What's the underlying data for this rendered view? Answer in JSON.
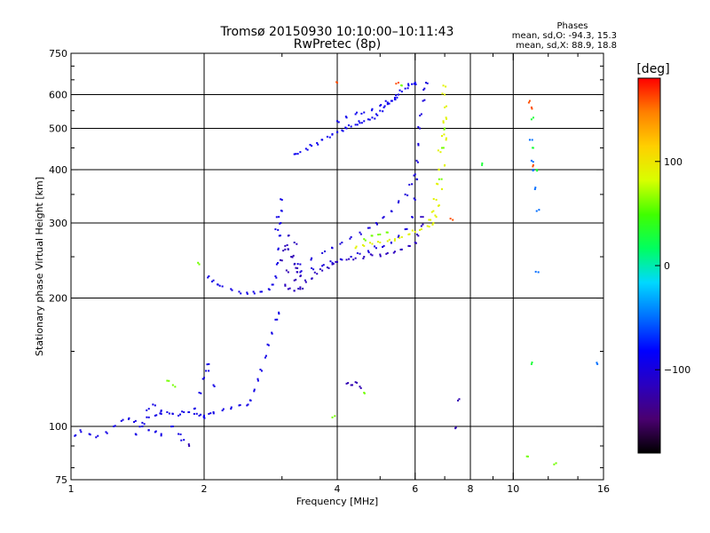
{
  "chart_data": {
    "type": "scatter",
    "title": "Tromsø 20150930 10:10:00–10:11:43",
    "subtitle": "RwPretec (8p)",
    "xlabel": "Frequency [MHz]",
    "ylabel": "Stationary phase Virtual Height [km]",
    "x_scale": "log",
    "y_scale": "log",
    "xlim": [
      1,
      16
    ],
    "ylim": [
      75,
      750
    ],
    "x_ticks": [
      1,
      2,
      4,
      6,
      8,
      10,
      16
    ],
    "y_ticks": [
      75,
      100,
      200,
      300,
      400,
      500,
      600,
      750
    ],
    "x_grid": [
      2,
      4,
      6,
      8,
      10
    ],
    "y_grid": [
      100,
      200,
      300,
      400,
      500,
      600
    ],
    "grid": true,
    "stats": {
      "title": "Phases",
      "line_o": "mean, sd,O: -94.3, 15.3",
      "line_x": "mean, sd,X:  88.9, 18.8"
    },
    "colorbar": {
      "label": "[deg]",
      "range": [
        -180,
        180
      ],
      "ticks": [
        {
          "value": 100,
          "label": "100"
        },
        {
          "value": 0,
          "label": "0"
        },
        {
          "value": -100,
          "label": "−100"
        }
      ],
      "stops": [
        "#000000",
        "#4a0070",
        "#2a00c0",
        "#0000ff",
        "#0070ff",
        "#00d8ff",
        "#00ff60",
        "#40ff00",
        "#d8ff00",
        "#ffd000",
        "#ff8000",
        "#ff0000"
      ]
    },
    "series": [
      {
        "phase": -95,
        "points": [
          [
            1.02,
            95
          ],
          [
            1.05,
            98
          ],
          [
            1.1,
            96
          ],
          [
            1.15,
            95
          ],
          [
            1.2,
            97
          ],
          [
            1.25,
            100
          ],
          [
            1.3,
            103
          ],
          [
            1.35,
            104
          ],
          [
            1.4,
            103
          ],
          [
            1.45,
            102
          ],
          [
            1.5,
            105
          ],
          [
            1.55,
            106
          ],
          [
            1.6,
            107
          ],
          [
            1.65,
            108
          ],
          [
            1.7,
            107
          ],
          [
            1.75,
            106
          ],
          [
            1.8,
            108
          ],
          [
            1.85,
            108
          ],
          [
            1.9,
            107
          ],
          [
            1.95,
            106
          ],
          [
            2.0,
            106
          ],
          [
            2.05,
            107
          ],
          [
            2.1,
            108
          ],
          [
            2.2,
            109
          ],
          [
            2.3,
            110
          ],
          [
            2.4,
            112
          ],
          [
            2.5,
            112
          ],
          [
            2.55,
            115
          ],
          [
            2.6,
            122
          ],
          [
            2.65,
            128
          ],
          [
            2.7,
            135
          ],
          [
            2.75,
            145
          ],
          [
            2.8,
            155
          ],
          [
            2.85,
            165
          ],
          [
            2.9,
            178
          ],
          [
            2.95,
            185
          ],
          [
            1.4,
            96
          ],
          [
            1.45,
            100
          ],
          [
            1.5,
            98
          ],
          [
            1.55,
            97
          ],
          [
            1.6,
            96
          ],
          [
            1.7,
            100
          ],
          [
            1.75,
            96
          ],
          [
            1.8,
            93
          ],
          [
            1.9,
            110
          ],
          [
            1.95,
            120
          ],
          [
            2.0,
            130
          ],
          [
            2.02,
            135
          ],
          [
            2.05,
            140
          ],
          [
            2.1,
            125
          ],
          [
            2.0,
            105
          ],
          [
            1.5,
            110
          ],
          [
            1.55,
            112
          ],
          [
            1.6,
            109
          ]
        ]
      },
      {
        "phase": -95,
        "points": [
          [
            2.05,
            225
          ],
          [
            2.1,
            220
          ],
          [
            2.15,
            215
          ],
          [
            2.2,
            213
          ],
          [
            2.3,
            210
          ],
          [
            2.4,
            207
          ],
          [
            2.5,
            206
          ],
          [
            2.6,
            205
          ],
          [
            2.7,
            207
          ],
          [
            2.8,
            210
          ],
          [
            2.85,
            215
          ],
          [
            2.9,
            225
          ],
          [
            2.92,
            240
          ],
          [
            2.94,
            260
          ],
          [
            2.96,
            280
          ],
          [
            2.98,
            300
          ],
          [
            3.0,
            320
          ],
          [
            3.0,
            340
          ],
          [
            2.95,
            310
          ],
          [
            2.9,
            290
          ]
        ]
      },
      {
        "phase": -115,
        "points": [
          [
            3.05,
            215
          ],
          [
            3.1,
            210
          ],
          [
            3.2,
            208
          ],
          [
            3.3,
            212
          ],
          [
            3.4,
            218
          ],
          [
            3.5,
            222
          ],
          [
            3.6,
            228
          ],
          [
            3.7,
            232
          ],
          [
            3.8,
            236
          ],
          [
            3.9,
            240
          ],
          [
            4.0,
            243
          ],
          [
            4.2,
            246
          ],
          [
            4.4,
            248
          ],
          [
            4.6,
            250
          ],
          [
            4.8,
            252
          ],
          [
            5.0,
            253
          ],
          [
            5.2,
            255
          ],
          [
            5.4,
            257
          ],
          [
            5.6,
            260
          ],
          [
            5.8,
            265
          ],
          [
            6.0,
            270
          ],
          [
            6.1,
            280
          ],
          [
            6.2,
            295
          ],
          [
            6.25,
            310
          ],
          [
            3.1,
            260
          ],
          [
            3.15,
            250
          ],
          [
            3.2,
            240
          ],
          [
            3.25,
            230
          ],
          [
            3.3,
            225
          ],
          [
            3.2,
            270
          ],
          [
            3.1,
            280
          ],
          [
            3.05,
            265
          ]
        ]
      },
      {
        "phase": -100,
        "points": [
          [
            3.3,
            240
          ],
          [
            3.5,
            248
          ],
          [
            3.7,
            255
          ],
          [
            3.9,
            262
          ],
          [
            4.1,
            270
          ],
          [
            4.3,
            278
          ],
          [
            4.5,
            285
          ],
          [
            4.7,
            292
          ],
          [
            4.9,
            300
          ],
          [
            5.1,
            310
          ],
          [
            5.3,
            320
          ],
          [
            5.5,
            335
          ],
          [
            5.7,
            350
          ],
          [
            5.9,
            370
          ],
          [
            6.0,
            390
          ],
          [
            6.05,
            420
          ],
          [
            6.1,
            460
          ],
          [
            6.15,
            500
          ],
          [
            6.2,
            540
          ],
          [
            6.25,
            580
          ],
          [
            6.3,
            620
          ],
          [
            6.35,
            640
          ],
          [
            3.3,
            230
          ],
          [
            3.5,
            235
          ],
          [
            3.7,
            238
          ],
          [
            3.9,
            242
          ],
          [
            4.1,
            246
          ],
          [
            4.3,
            250
          ],
          [
            4.5,
            254
          ],
          [
            4.7,
            258
          ],
          [
            4.9,
            262
          ],
          [
            5.1,
            265
          ],
          [
            5.3,
            270
          ],
          [
            5.5,
            278
          ],
          [
            5.7,
            290
          ],
          [
            5.9,
            310
          ],
          [
            6.0,
            340
          ],
          [
            6.05,
            380
          ]
        ]
      },
      {
        "phase": -90,
        "points": [
          [
            3.2,
            435
          ],
          [
            3.3,
            440
          ],
          [
            3.4,
            448
          ],
          [
            3.5,
            455
          ],
          [
            3.6,
            462
          ],
          [
            3.7,
            470
          ],
          [
            3.8,
            478
          ],
          [
            3.9,
            485
          ],
          [
            4.0,
            490
          ],
          [
            4.1,
            495
          ],
          [
            4.2,
            500
          ],
          [
            4.3,
            505
          ],
          [
            4.4,
            510
          ],
          [
            4.5,
            515
          ],
          [
            4.6,
            520
          ],
          [
            4.7,
            525
          ],
          [
            4.8,
            530
          ],
          [
            4.9,
            540
          ],
          [
            5.0,
            550
          ],
          [
            5.1,
            560
          ],
          [
            5.2,
            570
          ],
          [
            5.3,
            580
          ],
          [
            5.4,
            590
          ],
          [
            5.5,
            600
          ],
          [
            5.6,
            610
          ],
          [
            5.7,
            620
          ],
          [
            5.8,
            630
          ],
          [
            5.9,
            635
          ],
          [
            6.0,
            640
          ],
          [
            4.0,
            520
          ],
          [
            4.2,
            530
          ],
          [
            4.4,
            540
          ],
          [
            4.6,
            545
          ],
          [
            4.8,
            555
          ],
          [
            5.0,
            565
          ],
          [
            5.2,
            575
          ],
          [
            5.4,
            585
          ]
        ]
      },
      {
        "phase": 90,
        "points": [
          [
            4.4,
            262
          ],
          [
            4.6,
            265
          ],
          [
            4.8,
            268
          ],
          [
            5.0,
            270
          ],
          [
            5.2,
            272
          ],
          [
            5.4,
            275
          ],
          [
            5.6,
            278
          ],
          [
            5.8,
            282
          ],
          [
            6.0,
            286
          ],
          [
            6.2,
            290
          ],
          [
            6.4,
            295
          ],
          [
            6.5,
            305
          ],
          [
            6.6,
            320
          ],
          [
            6.7,
            340
          ],
          [
            6.75,
            370
          ],
          [
            6.8,
            400
          ],
          [
            6.85,
            440
          ],
          [
            6.9,
            480
          ],
          [
            6.95,
            520
          ],
          [
            7.0,
            560
          ],
          [
            7.0,
            600
          ],
          [
            6.95,
            630
          ],
          [
            6.6,
            300
          ],
          [
            6.7,
            310
          ],
          [
            6.8,
            330
          ],
          [
            6.9,
            360
          ],
          [
            7.0,
            410
          ],
          [
            7.05,
            470
          ],
          [
            7.05,
            530
          ]
        ]
      },
      {
        "phase": 60,
        "points": [
          [
            4.6,
            275
          ],
          [
            4.8,
            280
          ],
          [
            5.0,
            282
          ],
          [
            5.2,
            285
          ],
          [
            6.9,
            450
          ],
          [
            7.0,
            500
          ],
          [
            6.8,
            380
          ],
          [
            5.6,
            630
          ],
          [
            1.65,
            128
          ],
          [
            1.7,
            125
          ],
          [
            3.9,
            105
          ],
          [
            4.6,
            120
          ],
          [
            10.8,
            85
          ],
          [
            12.5,
            82
          ],
          [
            1.95,
            240
          ]
        ]
      },
      {
        "phase": -120,
        "points": [
          [
            3.05,
            260
          ],
          [
            3.1,
            230
          ],
          [
            3.2,
            220
          ],
          [
            3.15,
            250
          ],
          [
            3.3,
            210
          ],
          [
            3.25,
            235
          ],
          [
            3.0,
            245
          ],
          [
            4.3,
            125
          ],
          [
            4.4,
            127
          ],
          [
            4.5,
            124
          ],
          [
            4.2,
            126
          ],
          [
            7.5,
            115
          ],
          [
            7.4,
            99
          ],
          [
            1.85,
            90
          ]
        ]
      },
      {
        "phase": -50,
        "points": [
          [
            10.9,
            470
          ],
          [
            11.0,
            420
          ],
          [
            11.1,
            400
          ],
          [
            11.2,
            360
          ],
          [
            11.3,
            320
          ],
          [
            11.4,
            230
          ],
          [
            15.5,
            140
          ]
        ]
      },
      {
        "phase": 30,
        "points": [
          [
            11.1,
            450
          ],
          [
            11.3,
            400
          ],
          [
            8.5,
            410
          ],
          [
            11.0,
            525
          ],
          [
            11.0,
            140
          ]
        ]
      },
      {
        "phase": 160,
        "points": [
          [
            4.0,
            640
          ],
          [
            7.3,
            305
          ],
          [
            10.9,
            580
          ],
          [
            11.0,
            560
          ],
          [
            11.1,
            410
          ],
          [
            5.5,
            640
          ]
        ]
      }
    ]
  }
}
